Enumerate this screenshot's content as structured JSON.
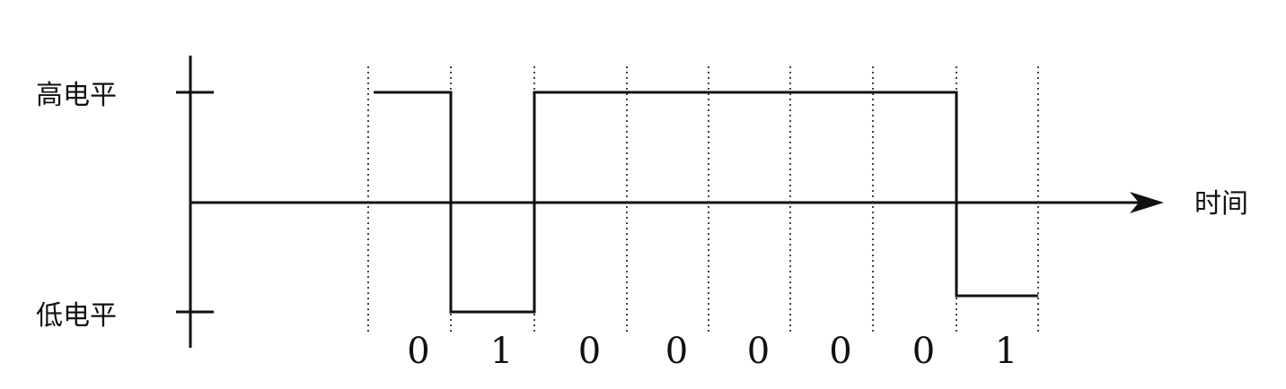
{
  "labels": {
    "high_level": "高电平",
    "low_level": "低电平",
    "time_axis": "时间"
  },
  "signal": {
    "bits": [
      "0",
      "1",
      "0",
      "0",
      "0",
      "0",
      "0",
      "1"
    ],
    "levels": [
      "high",
      "low",
      "high",
      "high",
      "high",
      "high",
      "high",
      "low"
    ]
  },
  "colors": {
    "stroke": "#111111",
    "background": "#ffffff"
  }
}
